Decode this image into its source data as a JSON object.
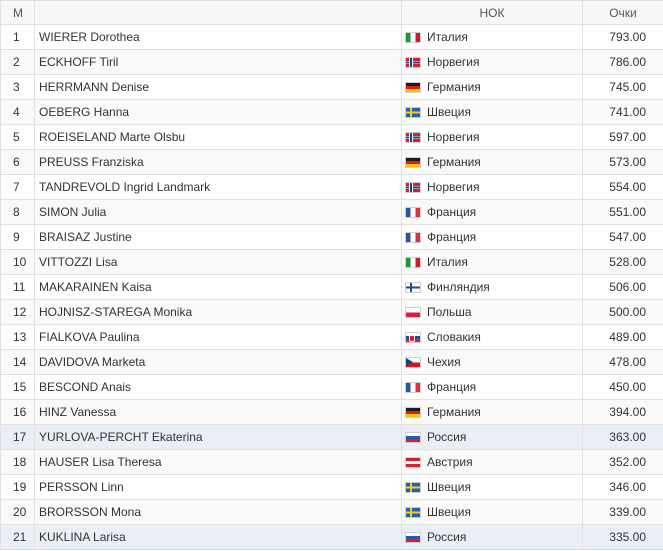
{
  "table": {
    "headers": {
      "rank": "М",
      "name": "",
      "nation": "НОК",
      "points": "Очки"
    },
    "rows": [
      {
        "rank": "1",
        "name": "WIERER Dorothea",
        "flag": "italy-flag",
        "country": "Италия",
        "points": "793.00"
      },
      {
        "rank": "2",
        "name": "ECKHOFF Tiril",
        "flag": "norway-flag",
        "country": "Норвегия",
        "points": "786.00"
      },
      {
        "rank": "3",
        "name": "HERRMANN Denise",
        "flag": "germany-flag",
        "country": "Германия",
        "points": "745.00"
      },
      {
        "rank": "4",
        "name": "OEBERG Hanna",
        "flag": "sweden-flag",
        "country": "Швеция",
        "points": "741.00"
      },
      {
        "rank": "5",
        "name": "ROEISELAND Marte Olsbu",
        "flag": "norway-flag",
        "country": "Норвегия",
        "points": "597.00"
      },
      {
        "rank": "6",
        "name": "PREUSS Franziska",
        "flag": "germany-flag",
        "country": "Германия",
        "points": "573.00"
      },
      {
        "rank": "7",
        "name": "TANDREVOLD Ingrid Landmark",
        "flag": "norway-flag",
        "country": "Норвегия",
        "points": "554.00"
      },
      {
        "rank": "8",
        "name": "SIMON Julia",
        "flag": "france-flag",
        "country": "Франция",
        "points": "551.00"
      },
      {
        "rank": "9",
        "name": "BRAISAZ Justine",
        "flag": "france-flag",
        "country": "Франция",
        "points": "547.00"
      },
      {
        "rank": "10",
        "name": "VITTOZZI Lisa",
        "flag": "italy-flag",
        "country": "Италия",
        "points": "528.00"
      },
      {
        "rank": "11",
        "name": "MAKARAINEN Kaisa",
        "flag": "finland-flag",
        "country": "Финляндия",
        "points": "506.00"
      },
      {
        "rank": "12",
        "name": "HOJNISZ-STAREGA Monika",
        "flag": "poland-flag",
        "country": "Польша",
        "points": "500.00"
      },
      {
        "rank": "13",
        "name": "FIALKOVA Paulina",
        "flag": "slovakia-flag",
        "country": "Словакия",
        "points": "489.00"
      },
      {
        "rank": "14",
        "name": "DAVIDOVA Marketa",
        "flag": "czechia-flag",
        "country": "Чехия",
        "points": "478.00"
      },
      {
        "rank": "15",
        "name": "BESCOND Anais",
        "flag": "france-flag",
        "country": "Франция",
        "points": "450.00"
      },
      {
        "rank": "16",
        "name": "HINZ Vanessa",
        "flag": "germany-flag",
        "country": "Германия",
        "points": "394.00"
      },
      {
        "rank": "17",
        "name": "YURLOVA-PERCHT Ekaterina",
        "flag": "russia-flag",
        "country": "Россия",
        "points": "363.00",
        "highlighted": true
      },
      {
        "rank": "18",
        "name": "HAUSER Lisa Theresa",
        "flag": "austria-flag",
        "country": "Австрия",
        "points": "352.00"
      },
      {
        "rank": "19",
        "name": "PERSSON Linn",
        "flag": "sweden-flag",
        "country": "Швеция",
        "points": "346.00"
      },
      {
        "rank": "20",
        "name": "BRORSSON Mona",
        "flag": "sweden-flag",
        "country": "Швеция",
        "points": "339.00"
      },
      {
        "rank": "21",
        "name": "KUKLINA Larisa",
        "flag": "russia-flag",
        "country": "Россия",
        "points": "335.00",
        "highlighted": true
      }
    ]
  },
  "colors": {
    "header_bg": "#f7f7f7",
    "stripe_bg": "#f9f9f9",
    "highlight_bg": "#eaeff6",
    "border": "#e1e1e1"
  }
}
